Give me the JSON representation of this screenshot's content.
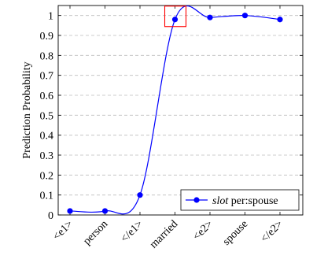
{
  "chart_data": {
    "type": "line",
    "title": "",
    "xlabel": "",
    "ylabel": "Prediction Probability",
    "categories": [
      "<e1>",
      "person",
      "</e1>",
      "married",
      "<e2>",
      "spouse",
      "</e2>"
    ],
    "series": [
      {
        "name": "slot per:spouse",
        "name_italic_part": "slot",
        "name_plain_part": "per:spouse",
        "values": [
          0.02,
          0.02,
          0.1,
          0.98,
          0.99,
          1.0,
          0.98
        ],
        "color": "#0000ff"
      }
    ],
    "ylim": [
      0,
      1.05
    ],
    "yticks": [
      0,
      0.1,
      0.2,
      0.3,
      0.4,
      0.5,
      0.6,
      0.7,
      0.8,
      0.9,
      1
    ],
    "ytick_labels": [
      "0",
      "0.1",
      "0.2",
      "0.3",
      "0.4",
      "0.5",
      "0.6",
      "0.7",
      "0.8",
      "0.9",
      "1"
    ],
    "grid": "horizontal-dashed",
    "legend_position": "bottom-right",
    "highlight": {
      "category": "married",
      "color": "#ff0000"
    }
  }
}
